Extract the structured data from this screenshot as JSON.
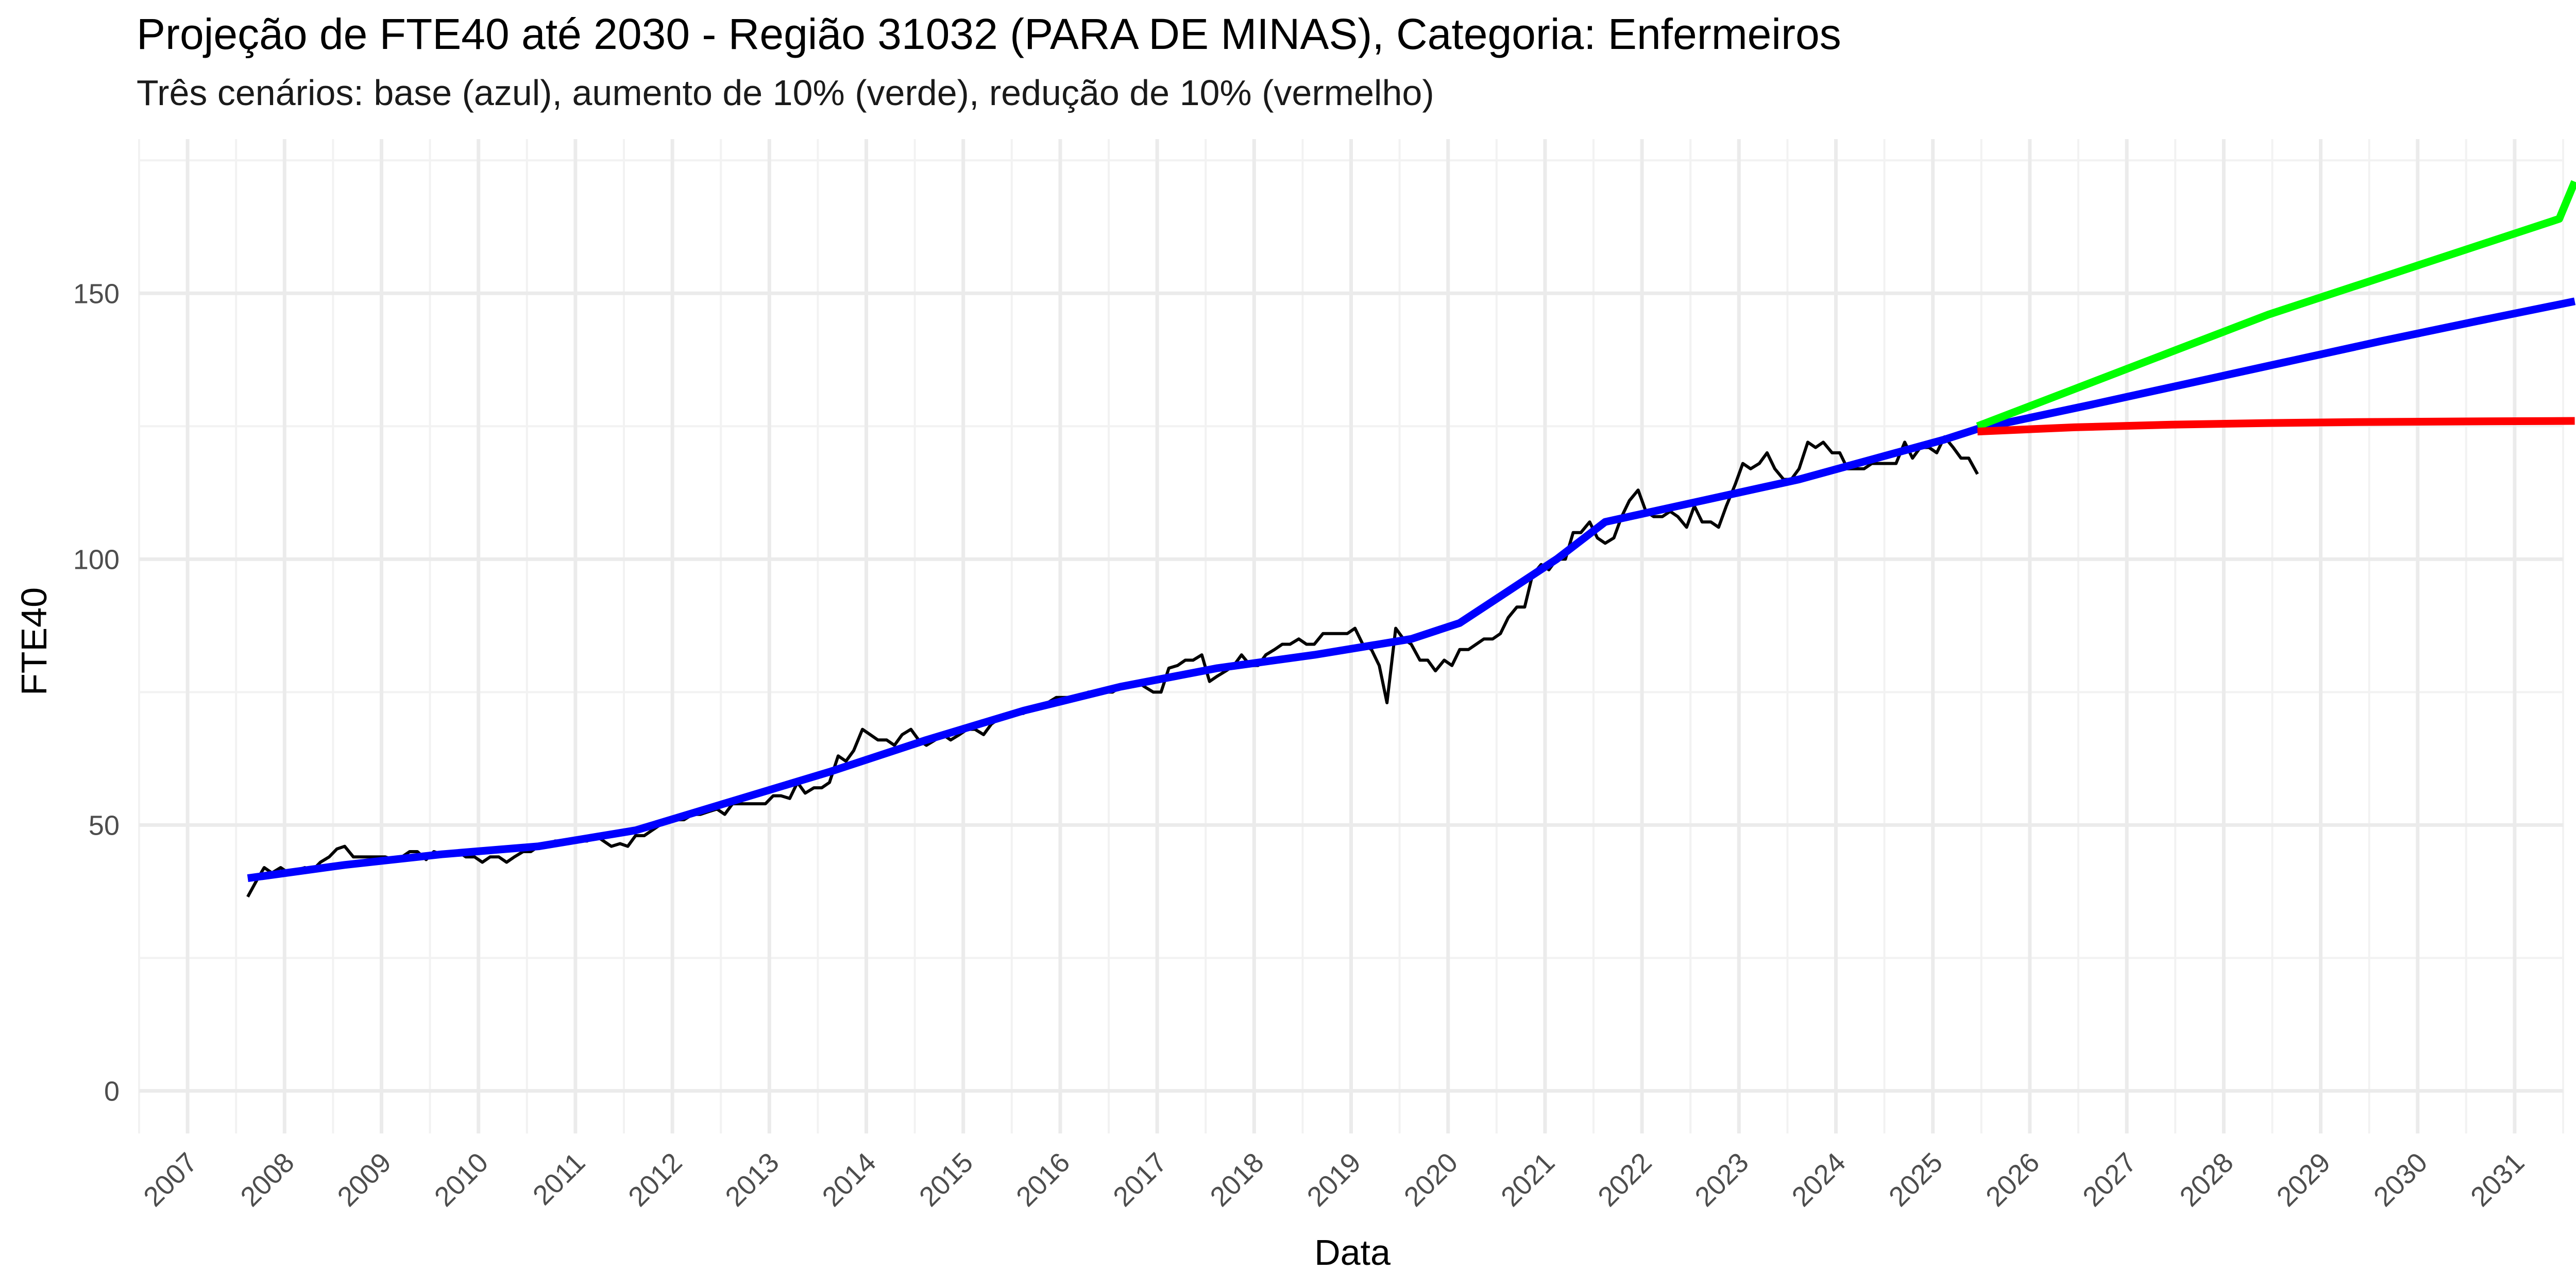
{
  "chart_data": {
    "type": "line",
    "title": "Projeção de FTE40 até 2030 - Região 31032 (PARA DE MINAS), Categoria: Enfermeiros",
    "subtitle": "Três cenários: base (azul), aumento de 10% (verde), redução de 10% (vermelho)",
    "xlabel": "Data",
    "ylabel": "FTE40",
    "xlim": [
      2006.5,
      2031.5
    ],
    "ylim": [
      -8,
      179
    ],
    "x_ticks": [
      "2007",
      "2008",
      "2009",
      "2010",
      "2011",
      "2012",
      "2013",
      "2014",
      "2015",
      "2016",
      "2017",
      "2018",
      "2019",
      "2020",
      "2021",
      "2022",
      "2023",
      "2024",
      "2025",
      "2026",
      "2027",
      "2028",
      "2029",
      "2030",
      "2031"
    ],
    "y_ticks": [
      "0",
      "50",
      "100",
      "150"
    ],
    "grid": true,
    "legend": "none",
    "series": [
      {
        "color": "#000000",
        "points": [
          [
            2007.62,
            36.5
          ],
          [
            2007.71,
            39.5
          ],
          [
            2007.79,
            42
          ],
          [
            2007.87,
            41
          ],
          [
            2007.96,
            42
          ],
          [
            2008.04,
            41
          ],
          [
            2008.12,
            41.5
          ],
          [
            2008.21,
            42
          ],
          [
            2008.29,
            41.5
          ],
          [
            2008.37,
            43
          ],
          [
            2008.46,
            44
          ],
          [
            2008.54,
            45.5
          ],
          [
            2008.62,
            46
          ],
          [
            2008.71,
            44
          ],
          [
            2008.79,
            44
          ],
          [
            2008.87,
            44
          ],
          [
            2008.96,
            44
          ],
          [
            2009.04,
            44
          ],
          [
            2009.12,
            43.5
          ],
          [
            2009.21,
            44
          ],
          [
            2009.29,
            45
          ],
          [
            2009.37,
            45
          ],
          [
            2009.46,
            43.5
          ],
          [
            2009.54,
            45
          ],
          [
            2009.62,
            44.5
          ],
          [
            2009.71,
            45
          ],
          [
            2009.79,
            45
          ],
          [
            2009.87,
            44
          ],
          [
            2009.96,
            44
          ],
          [
            2010.04,
            43
          ],
          [
            2010.12,
            44
          ],
          [
            2010.21,
            44
          ],
          [
            2010.29,
            43
          ],
          [
            2010.37,
            44
          ],
          [
            2010.46,
            45
          ],
          [
            2010.54,
            45
          ],
          [
            2010.62,
            46
          ],
          [
            2010.71,
            46
          ],
          [
            2010.79,
            47
          ],
          [
            2010.87,
            47
          ],
          [
            2010.96,
            47
          ],
          [
            2011.04,
            47
          ],
          [
            2011.12,
            47
          ],
          [
            2011.21,
            48
          ],
          [
            2011.29,
            47
          ],
          [
            2011.37,
            46
          ],
          [
            2011.46,
            46.5
          ],
          [
            2011.54,
            46
          ],
          [
            2011.62,
            48
          ],
          [
            2011.71,
            48
          ],
          [
            2011.79,
            49
          ],
          [
            2011.87,
            50
          ],
          [
            2011.96,
            51
          ],
          [
            2012.04,
            51
          ],
          [
            2012.12,
            51
          ],
          [
            2012.21,
            52
          ],
          [
            2012.29,
            52
          ],
          [
            2012.37,
            52.5
          ],
          [
            2012.46,
            53
          ],
          [
            2012.54,
            52
          ],
          [
            2012.62,
            54
          ],
          [
            2012.71,
            54
          ],
          [
            2012.79,
            54
          ],
          [
            2012.87,
            54
          ],
          [
            2012.96,
            54
          ],
          [
            2013.04,
            55.5
          ],
          [
            2013.12,
            55.5
          ],
          [
            2013.21,
            55
          ],
          [
            2013.29,
            58
          ],
          [
            2013.37,
            56
          ],
          [
            2013.46,
            57
          ],
          [
            2013.54,
            57
          ],
          [
            2013.62,
            58
          ],
          [
            2013.71,
            63
          ],
          [
            2013.79,
            62
          ],
          [
            2013.87,
            64
          ],
          [
            2013.96,
            68
          ],
          [
            2014.04,
            67
          ],
          [
            2014.12,
            66
          ],
          [
            2014.21,
            66
          ],
          [
            2014.29,
            65
          ],
          [
            2014.37,
            67
          ],
          [
            2014.46,
            68
          ],
          [
            2014.54,
            66
          ],
          [
            2014.62,
            65
          ],
          [
            2014.71,
            66
          ],
          [
            2014.79,
            67
          ],
          [
            2014.87,
            66
          ],
          [
            2014.96,
            67
          ],
          [
            2015.04,
            68
          ],
          [
            2015.12,
            68
          ],
          [
            2015.21,
            67
          ],
          [
            2015.29,
            69
          ],
          [
            2015.37,
            70
          ],
          [
            2015.46,
            71
          ],
          [
            2015.54,
            71
          ],
          [
            2015.62,
            71
          ],
          [
            2015.71,
            72
          ],
          [
            2015.79,
            72
          ],
          [
            2015.87,
            73
          ],
          [
            2015.96,
            74
          ],
          [
            2016.04,
            74
          ],
          [
            2016.12,
            74
          ],
          [
            2016.21,
            74
          ],
          [
            2016.29,
            75
          ],
          [
            2016.37,
            75
          ],
          [
            2016.46,
            75
          ],
          [
            2016.54,
            75
          ],
          [
            2016.62,
            76
          ],
          [
            2016.71,
            76
          ],
          [
            2016.79,
            77
          ],
          [
            2016.87,
            76
          ],
          [
            2016.96,
            75
          ],
          [
            2017.04,
            75
          ],
          [
            2017.12,
            79.5
          ],
          [
            2017.21,
            80
          ],
          [
            2017.29,
            81
          ],
          [
            2017.37,
            81
          ],
          [
            2017.46,
            82
          ],
          [
            2017.54,
            77
          ],
          [
            2017.62,
            78
          ],
          [
            2017.71,
            79
          ],
          [
            2017.79,
            80
          ],
          [
            2017.87,
            82
          ],
          [
            2017.96,
            80
          ],
          [
            2018.04,
            80
          ],
          [
            2018.12,
            82
          ],
          [
            2018.21,
            83
          ],
          [
            2018.29,
            84
          ],
          [
            2018.37,
            84
          ],
          [
            2018.46,
            85
          ],
          [
            2018.54,
            84
          ],
          [
            2018.62,
            84
          ],
          [
            2018.71,
            86
          ],
          [
            2018.79,
            86
          ],
          [
            2018.87,
            86
          ],
          [
            2018.96,
            86
          ],
          [
            2019.04,
            87
          ],
          [
            2019.12,
            84
          ],
          [
            2019.21,
            83
          ],
          [
            2019.29,
            80
          ],
          [
            2019.37,
            73
          ],
          [
            2019.46,
            87
          ],
          [
            2019.54,
            85
          ],
          [
            2019.62,
            84
          ],
          [
            2019.71,
            81
          ],
          [
            2019.79,
            81
          ],
          [
            2019.87,
            79
          ],
          [
            2019.96,
            81
          ],
          [
            2020.04,
            80
          ],
          [
            2020.12,
            83
          ],
          [
            2020.21,
            83
          ],
          [
            2020.29,
            84
          ],
          [
            2020.37,
            85
          ],
          [
            2020.46,
            85
          ],
          [
            2020.54,
            86
          ],
          [
            2020.62,
            89
          ],
          [
            2020.71,
            91
          ],
          [
            2020.79,
            91
          ],
          [
            2020.87,
            97
          ],
          [
            2020.96,
            99
          ],
          [
            2021.04,
            98
          ],
          [
            2021.12,
            100
          ],
          [
            2021.21,
            100
          ],
          [
            2021.29,
            105
          ],
          [
            2021.37,
            105
          ],
          [
            2021.46,
            107
          ],
          [
            2021.54,
            104
          ],
          [
            2021.62,
            103
          ],
          [
            2021.71,
            104
          ],
          [
            2021.79,
            108
          ],
          [
            2021.87,
            111
          ],
          [
            2021.96,
            113
          ],
          [
            2022.04,
            109
          ],
          [
            2022.12,
            108
          ],
          [
            2022.21,
            108
          ],
          [
            2022.29,
            109
          ],
          [
            2022.37,
            108
          ],
          [
            2022.46,
            106
          ],
          [
            2022.54,
            110
          ],
          [
            2022.62,
            107
          ],
          [
            2022.71,
            107
          ],
          [
            2022.79,
            106
          ],
          [
            2022.87,
            110
          ],
          [
            2022.96,
            114
          ],
          [
            2023.04,
            118
          ],
          [
            2023.12,
            117
          ],
          [
            2023.21,
            118
          ],
          [
            2023.29,
            120
          ],
          [
            2023.37,
            117
          ],
          [
            2023.46,
            115
          ],
          [
            2023.54,
            115
          ],
          [
            2023.62,
            117
          ],
          [
            2023.71,
            122
          ],
          [
            2023.79,
            121
          ],
          [
            2023.87,
            122
          ],
          [
            2023.96,
            120
          ],
          [
            2024.04,
            120
          ],
          [
            2024.12,
            117
          ],
          [
            2024.21,
            117
          ],
          [
            2024.29,
            117
          ],
          [
            2024.37,
            118
          ],
          [
            2024.46,
            118
          ],
          [
            2024.54,
            118
          ],
          [
            2024.62,
            118
          ],
          [
            2024.71,
            122
          ],
          [
            2024.79,
            119
          ],
          [
            2024.87,
            121
          ],
          [
            2024.96,
            121
          ],
          [
            2025.04,
            120
          ],
          [
            2025.12,
            123
          ],
          [
            2025.21,
            121
          ],
          [
            2025.29,
            119
          ],
          [
            2025.37,
            119
          ],
          [
            2025.46,
            116
          ]
        ]
      },
      {
        "color": "#0000ff",
        "points": [
          [
            2007.62,
            40
          ],
          [
            2008.62,
            42.5
          ],
          [
            2009.62,
            44.5
          ],
          [
            2010.62,
            46
          ],
          [
            2011.62,
            49
          ],
          [
            2012.62,
            54.5
          ],
          [
            2013.62,
            60
          ],
          [
            2014.62,
            66
          ],
          [
            2015.62,
            71.5
          ],
          [
            2016.62,
            76
          ],
          [
            2017.62,
            79.5
          ],
          [
            2018.62,
            82
          ],
          [
            2019.62,
            85
          ],
          [
            2020.12,
            88
          ],
          [
            2020.62,
            94
          ],
          [
            2021.12,
            100
          ],
          [
            2021.62,
            107
          ],
          [
            2022.62,
            111
          ],
          [
            2023.62,
            115
          ],
          [
            2024.62,
            120
          ],
          [
            2025.12,
            122.5
          ],
          [
            2025.46,
            124.5
          ],
          [
            2026.62,
            129
          ],
          [
            2027.62,
            133
          ],
          [
            2028.62,
            137
          ],
          [
            2029.62,
            141
          ],
          [
            2030.62,
            144.8
          ],
          [
            2031.62,
            148.5
          ]
        ]
      },
      {
        "color": "#00ff00",
        "points": [
          [
            2025.46,
            125
          ],
          [
            2026.46,
            132
          ],
          [
            2027.46,
            139
          ],
          [
            2028.46,
            146
          ],
          [
            2029.46,
            152
          ],
          [
            2030.46,
            158
          ],
          [
            2031.46,
            164
          ],
          [
            2031.62,
            171
          ]
        ]
      },
      {
        "color": "#ff0000",
        "points": [
          [
            2025.46,
            124
          ],
          [
            2026.46,
            124.8
          ],
          [
            2027.46,
            125.3
          ],
          [
            2028.46,
            125.6
          ],
          [
            2029.46,
            125.8
          ],
          [
            2030.46,
            125.9
          ],
          [
            2031.62,
            126
          ]
        ]
      }
    ]
  }
}
